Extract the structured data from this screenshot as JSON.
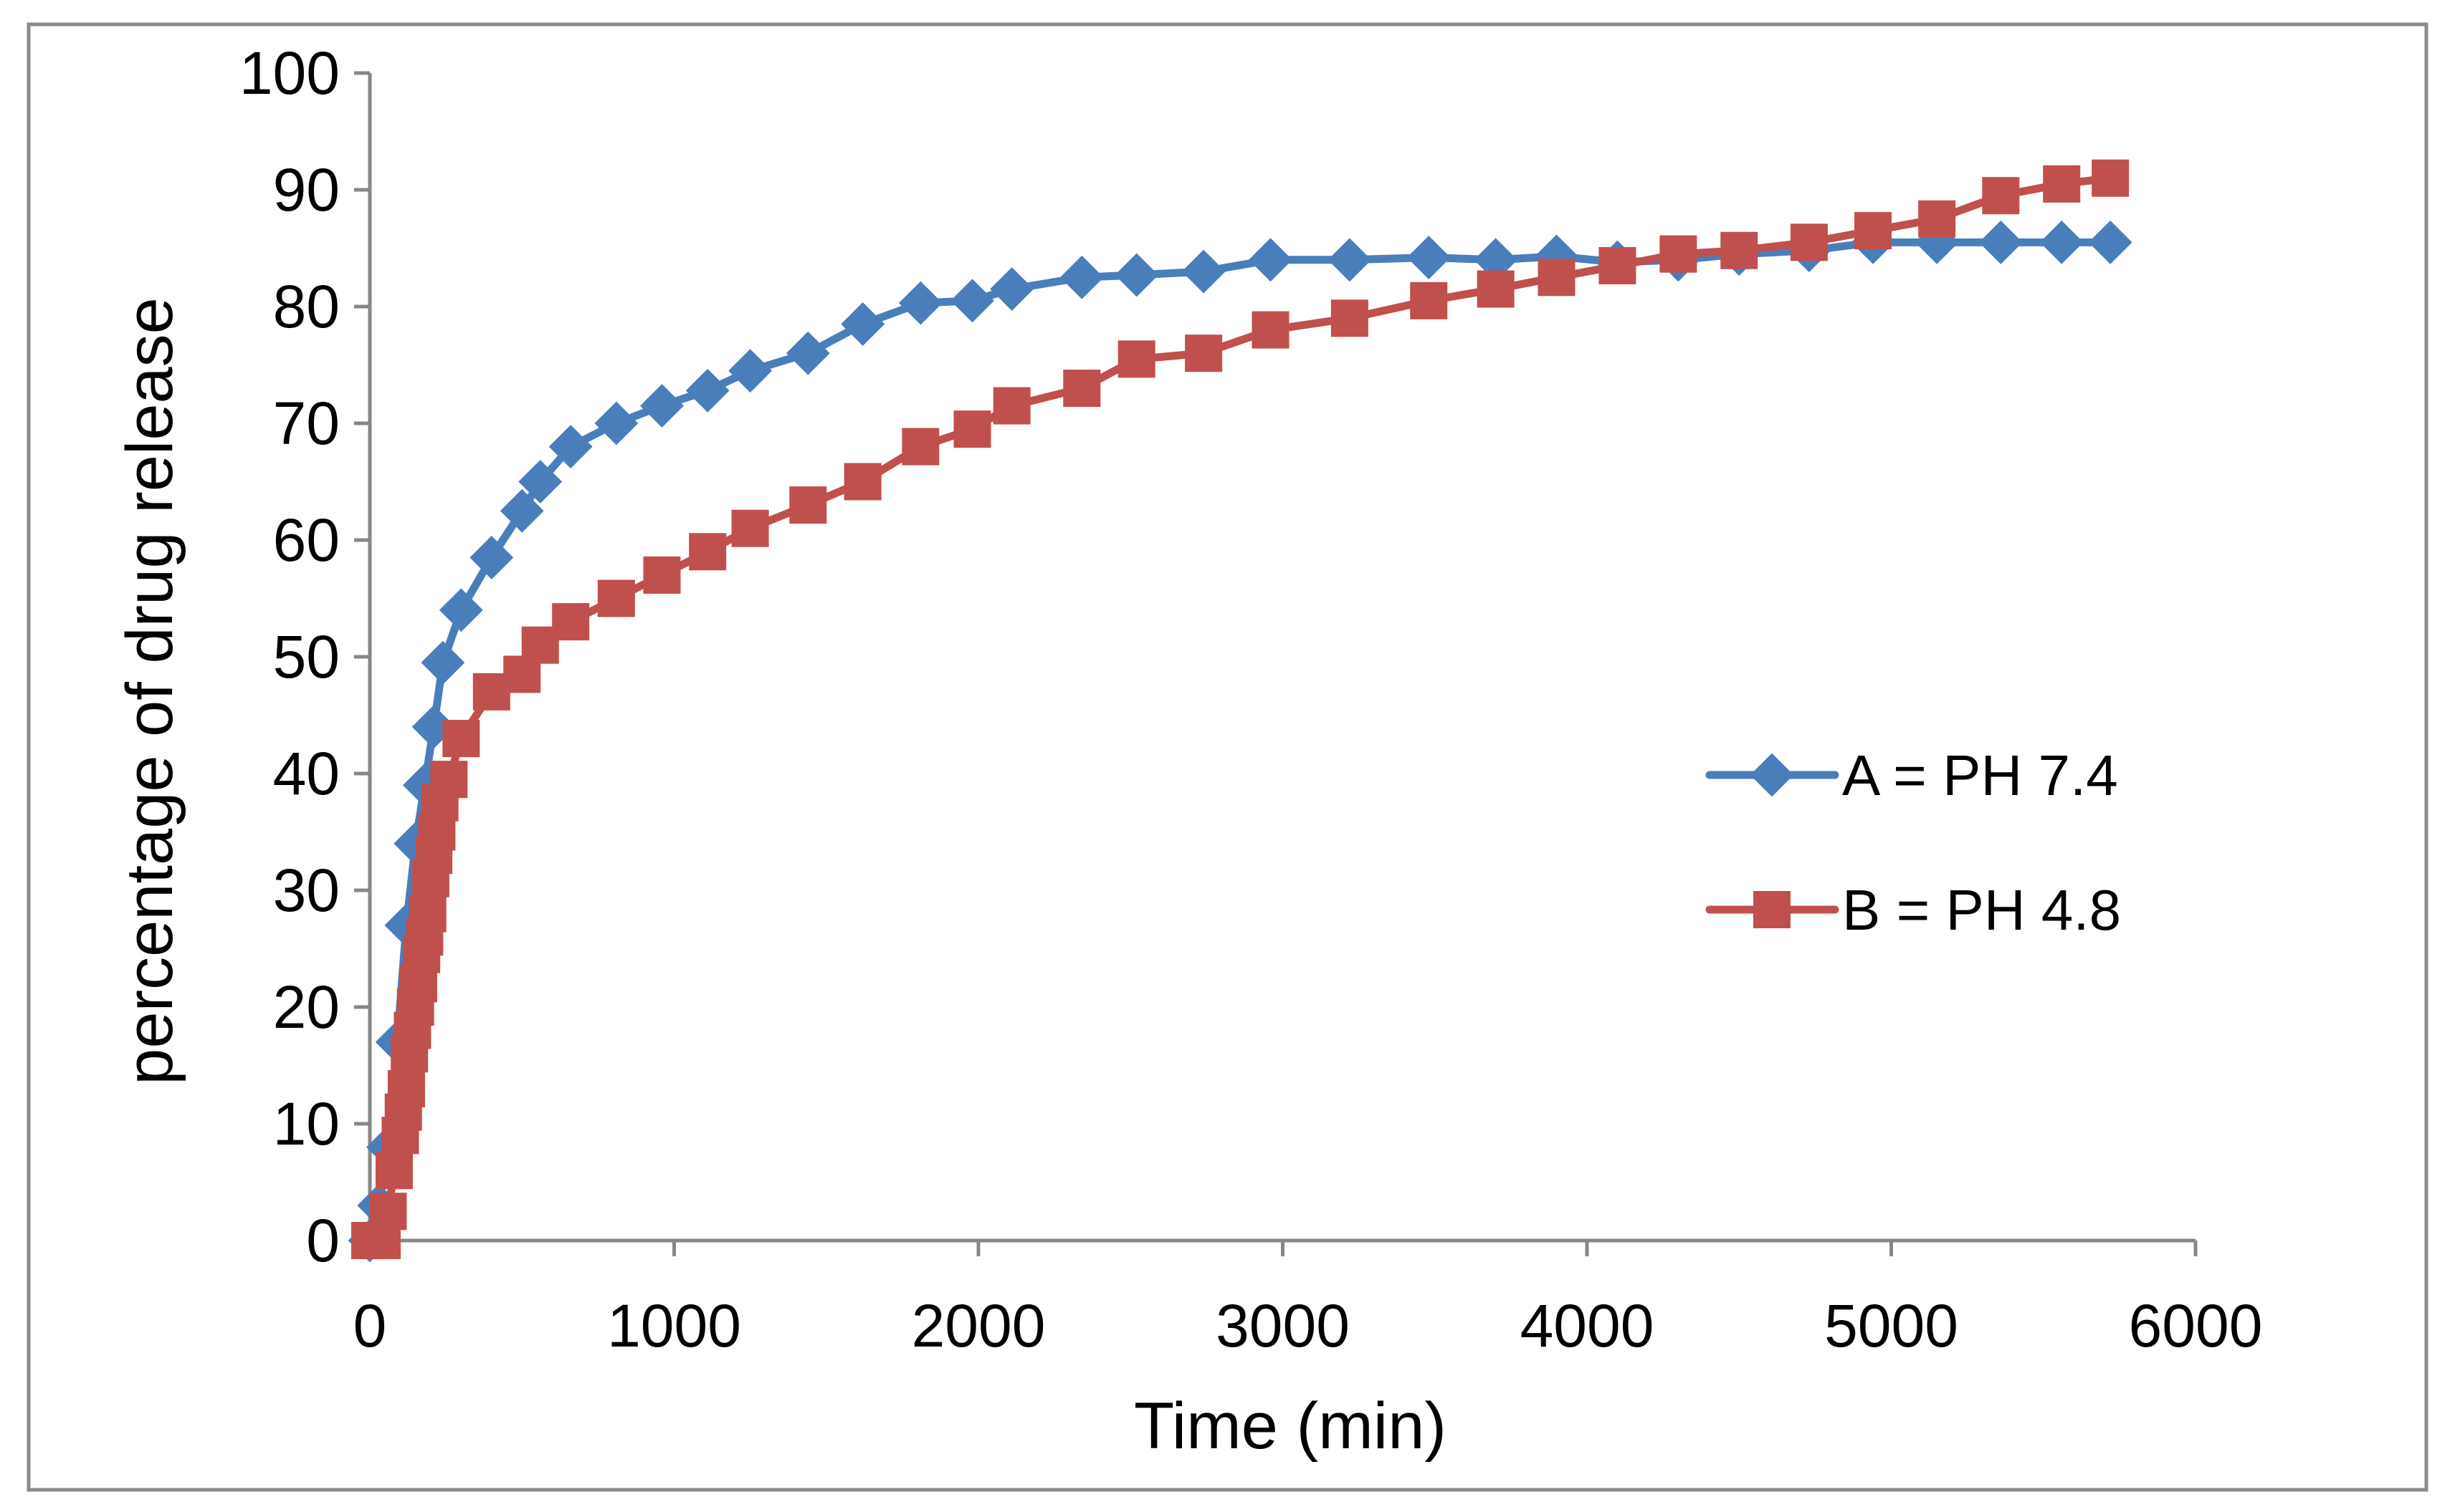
{
  "chart_data": {
    "type": "line",
    "title": "",
    "xlabel": "Time (min)",
    "ylabel": "percentage of drug release",
    "xlim": [
      0,
      6000
    ],
    "ylim": [
      0,
      100
    ],
    "x_ticks": [
      "0",
      "1000",
      "2000",
      "3000",
      "4000",
      "5000",
      "6000"
    ],
    "x_tick_values": [
      0,
      1000,
      2000,
      3000,
      4000,
      5000,
      6000
    ],
    "y_ticks": [
      "0",
      "10",
      "20",
      "30",
      "40",
      "50",
      "60",
      "70",
      "80",
      "90",
      "100"
    ],
    "y_tick_values": [
      0,
      10,
      20,
      30,
      40,
      50,
      60,
      70,
      80,
      90,
      100
    ],
    "grid": false,
    "legend_position": "right",
    "series": [
      {
        "name": "A = PH 7.4",
        "color": "#4a7ebb",
        "marker": "diamond",
        "x": [
          0,
          30,
          60,
          90,
          120,
          150,
          180,
          210,
          240,
          300,
          400,
          500,
          560,
          660,
          810,
          960,
          1110,
          1250,
          1440,
          1620,
          1810,
          1980,
          2110,
          2340,
          2520,
          2740,
          2960,
          3220,
          3480,
          3700,
          3900,
          4100,
          4300,
          4500,
          4730,
          4940,
          5150,
          5360,
          5560,
          5720
        ],
        "y": [
          0,
          3,
          8,
          17,
          27,
          34,
          39,
          44,
          49.5,
          54,
          58.5,
          62.5,
          65,
          68,
          70,
          71.5,
          72.8,
          74.5,
          76,
          78.5,
          80.3,
          80.5,
          81.5,
          82.5,
          82.7,
          83,
          84,
          84,
          84.2,
          84,
          84.3,
          83.8,
          84,
          84.5,
          84.8,
          85.5,
          85.5,
          85.5,
          85.5,
          85.5
        ]
      },
      {
        "name": "B = PH 4.8",
        "color": "#c0504d",
        "marker": "square",
        "x": [
          0,
          40,
          60,
          80,
          100,
          110,
          120,
          130,
          140,
          150,
          160,
          170,
          180,
          190,
          200,
          210,
          220,
          230,
          260,
          300,
          400,
          500,
          560,
          660,
          810,
          960,
          1110,
          1250,
          1440,
          1620,
          1810,
          1980,
          2110,
          2340,
          2520,
          2740,
          2960,
          3220,
          3480,
          3700,
          3900,
          4100,
          4300,
          4500,
          4730,
          4940,
          5150,
          5360,
          5560,
          5720
        ],
        "y": [
          0,
          0,
          2.5,
          6,
          9,
          11,
          13,
          16,
          18,
          20,
          22,
          24.5,
          26,
          28,
          31,
          33,
          35,
          37.5,
          39.5,
          43,
          47,
          48.5,
          51,
          53,
          55,
          57,
          59,
          61,
          63,
          65,
          68,
          69.5,
          71.5,
          73,
          75.5,
          76,
          78,
          79,
          80.5,
          81.5,
          82.5,
          83.5,
          84.5,
          84.8,
          85.5,
          86.5,
          87.5,
          89.5,
          90.5,
          91
        ]
      }
    ]
  }
}
